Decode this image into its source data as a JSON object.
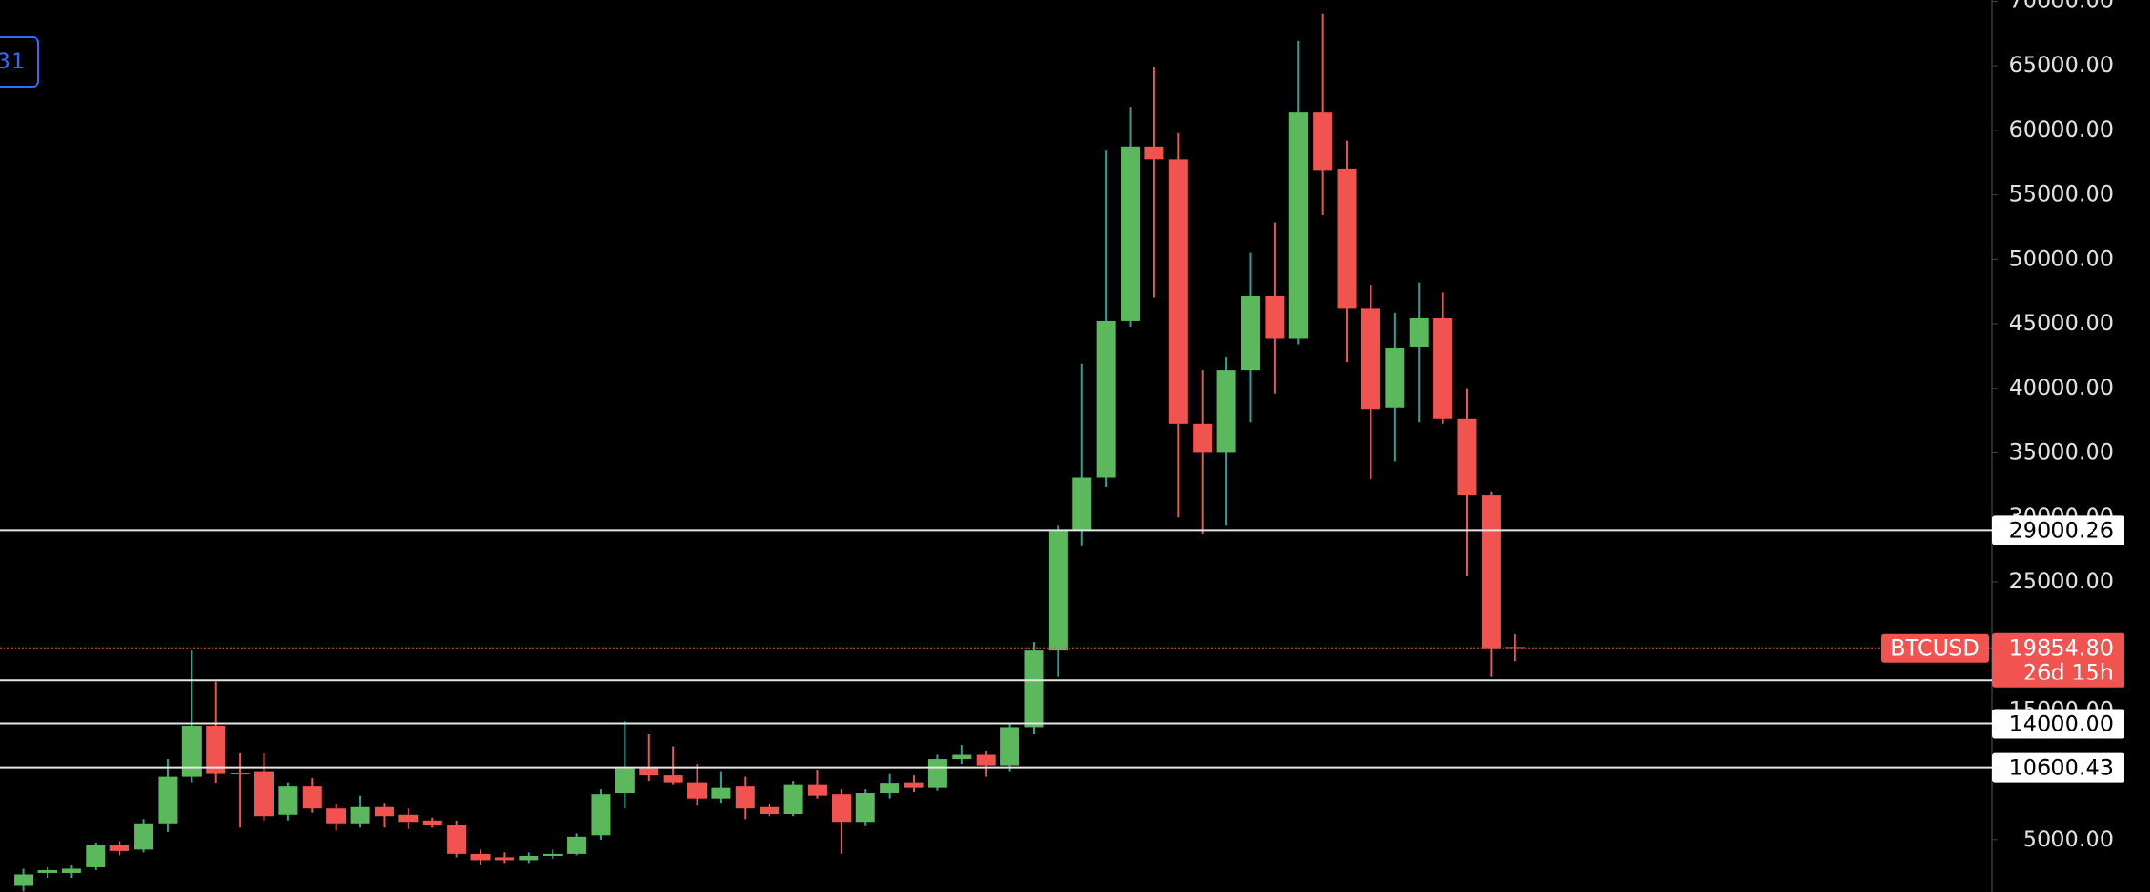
{
  "chart_data": {
    "type": "candlestick",
    "symbol": "BTCUSD",
    "badge": "31",
    "ylim": [
      960,
      70100
    ],
    "yticks": [
      {
        "value": 5000,
        "label": "5000.00"
      },
      {
        "value": 15000,
        "label": "15000.00"
      },
      {
        "value": 25000,
        "label": "25000.00"
      },
      {
        "value": 30000,
        "label": "30000.00"
      },
      {
        "value": 35000,
        "label": "35000.00"
      },
      {
        "value": 40000,
        "label": "40000.00"
      },
      {
        "value": 45000,
        "label": "45000.00"
      },
      {
        "value": 50000,
        "label": "50000.00"
      },
      {
        "value": 55000,
        "label": "55000.00"
      },
      {
        "value": 60000,
        "label": "60000.00"
      },
      {
        "value": 65000,
        "label": "65000.00"
      },
      {
        "value": 70000,
        "label": "70000.00"
      }
    ],
    "up_color": "#5cb85c",
    "down_color": "#f05350",
    "up_wick_color": "#26a69a",
    "open": [
      1490,
      2447,
      2447,
      2873,
      4575,
      4256,
      6278,
      9895,
      13832,
      10214,
      10321,
      6916,
      9150,
      7448,
      6278,
      7554,
      6916,
      6490,
      6171,
      3937,
      3618,
      3405,
      3724,
      3937,
      5320,
      8618,
      10534,
      10002,
      9470,
      8193,
      9150,
      7554,
      7022,
      9257,
      8512,
      6384,
      8618,
      9470,
      9044,
      11278,
      11598,
      10746,
      13726,
      19684,
      29047,
      33090,
      45220,
      58733,
      57775,
      37240,
      35006,
      41390,
      47135,
      43837,
      61393,
      57030,
      46178,
      38517,
      43198,
      45433,
      37666,
      31707,
      19950
    ],
    "high": [
      2766,
      2873,
      3086,
      4788,
      4894,
      6597,
      11278,
      19684,
      17237,
      11704,
      11704,
      9470,
      9789,
      7767,
      8406,
      7874,
      7448,
      6703,
      6490,
      4256,
      4043,
      4043,
      4256,
      5533,
      8938,
      14258,
      13194,
      12236,
      10853,
      10321,
      9895,
      7767,
      9576,
      10427,
      8938,
      8938,
      10108,
      10002,
      11598,
      12342,
      11917,
      14045,
      20322,
      29366,
      41922,
      58414,
      61818,
      64904,
      59797,
      41390,
      42454,
      50540,
      52881,
      66926,
      69054,
      59158,
      47986,
      45858,
      48199,
      47454,
      40006,
      32026,
      20961
    ],
    "low": [
      1000,
      2022,
      2022,
      2660,
      3830,
      4043,
      5639,
      9470,
      9363,
      5958,
      6490,
      6490,
      7129,
      5746,
      5958,
      5958,
      5852,
      5958,
      3618,
      3086,
      3192,
      3192,
      3511,
      3830,
      5001,
      7448,
      9576,
      9257,
      7661,
      7874,
      6597,
      6810,
      6810,
      8193,
      3937,
      6065,
      8193,
      8725,
      8831,
      10853,
      9895,
      10321,
      13194,
      17662,
      27770,
      32346,
      44794,
      47029,
      30005,
      28728,
      29366,
      37346,
      39581,
      43411,
      53413,
      42028,
      32984,
      34367,
      37346,
      37240,
      25430,
      17662,
      18833
    ],
    "close": [
      2341,
      2660,
      2766,
      4575,
      4150,
      6278,
      9895,
      13832,
      10108,
      10108,
      6810,
      9150,
      7448,
      6278,
      7554,
      6810,
      6384,
      6171,
      3937,
      3405,
      3405,
      3724,
      3937,
      5214,
      8512,
      10534,
      10002,
      9470,
      8193,
      9044,
      7448,
      7022,
      9257,
      8406,
      6384,
      8618,
      9363,
      9044,
      11278,
      11598,
      10746,
      13726,
      19684,
      28941,
      33090,
      45220,
      58733,
      57775,
      37240,
      35006,
      41390,
      47135,
      43837,
      61393,
      56924,
      46178,
      38410,
      43092,
      45433,
      37666,
      31707,
      19790,
      19850
    ],
    "hlines": [
      29000.26,
      {
        "value": 14000,
        "label": "14000.00"
      },
      {
        "value": 10600.43,
        "label": "10600.43"
      }
    ],
    "hlines_unlabeled": [
      17343
    ],
    "last_price": {
      "value": 19854.8,
      "label": "19854.80"
    },
    "countdown": "26d 15h"
  }
}
